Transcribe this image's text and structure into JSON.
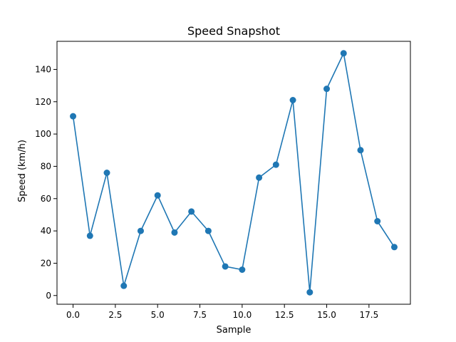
{
  "chart_data": {
    "type": "line",
    "title": "Speed Snapshot",
    "xlabel": "Sample",
    "ylabel": "Speed (km/h)",
    "xlim": [
      -0.95,
      19.95
    ],
    "ylim": [
      -5.4,
      157.4
    ],
    "xticks": [
      0.0,
      2.5,
      5.0,
      7.5,
      10.0,
      12.5,
      15.0,
      17.5
    ],
    "xtick_labels": [
      "0.0",
      "2.5",
      "5.0",
      "7.5",
      "10.0",
      "12.5",
      "15.0",
      "17.5"
    ],
    "yticks": [
      0,
      20,
      40,
      60,
      80,
      100,
      120,
      140
    ],
    "ytick_labels": [
      "0",
      "20",
      "40",
      "60",
      "80",
      "100",
      "120",
      "140"
    ],
    "grid": false,
    "legend": false,
    "markers": "circle",
    "series": [
      {
        "color": "#1f77b4",
        "x": [
          0,
          1,
          2,
          3,
          4,
          5,
          6,
          7,
          8,
          9,
          10,
          11,
          12,
          13,
          14,
          15,
          16,
          17,
          18,
          19
        ],
        "y": [
          111,
          37,
          76,
          6,
          40,
          62,
          39,
          52,
          40,
          18,
          16,
          73,
          81,
          121,
          2,
          128,
          150,
          90,
          46,
          30
        ]
      }
    ]
  }
}
